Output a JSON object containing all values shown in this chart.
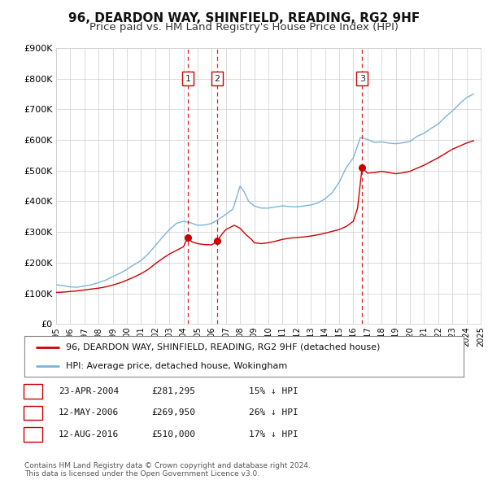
{
  "title": "96, DEARDON WAY, SHINFIELD, READING, RG2 9HF",
  "subtitle": "Price paid vs. HM Land Registry's House Price Index (HPI)",
  "title_fontsize": 11,
  "subtitle_fontsize": 9.5,
  "background_color": "#ffffff",
  "plot_bg_color": "#ffffff",
  "grid_color": "#cccccc",
  "ylim": [
    0,
    900000
  ],
  "yticks": [
    0,
    100000,
    200000,
    300000,
    400000,
    500000,
    600000,
    700000,
    800000,
    900000
  ],
  "ytick_labels": [
    "£0",
    "£100K",
    "£200K",
    "£300K",
    "£400K",
    "£500K",
    "£600K",
    "£700K",
    "£800K",
    "£900K"
  ],
  "hpi_color": "#7cb4d8",
  "price_color": "#cc0000",
  "sale_marker_color": "#cc0000",
  "dashed_line_color": "#cc0000",
  "sales": [
    {
      "label": "1",
      "date_x": 2004.31,
      "price": 281295
    },
    {
      "label": "2",
      "date_x": 2006.37,
      "price": 269950
    },
    {
      "label": "3",
      "date_x": 2016.62,
      "price": 510000
    }
  ],
  "legend_label_price": "96, DEARDON WAY, SHINFIELD, READING, RG2 9HF (detached house)",
  "legend_label_hpi": "HPI: Average price, detached house, Wokingham",
  "table_rows": [
    {
      "num": "1",
      "date": "23-APR-2004",
      "price": "£281,295",
      "pct": "15% ↓ HPI"
    },
    {
      "num": "2",
      "date": "12-MAY-2006",
      "price": "£269,950",
      "pct": "26% ↓ HPI"
    },
    {
      "num": "3",
      "date": "12-AUG-2016",
      "price": "£510,000",
      "pct": "17% ↓ HPI"
    }
  ],
  "footer_text": "Contains HM Land Registry data © Crown copyright and database right 2024.\nThis data is licensed under the Open Government Licence v3.0.",
  "xmin": 1995,
  "xmax": 2025,
  "hpi_points": [
    [
      1995.0,
      128000
    ],
    [
      1995.5,
      125000
    ],
    [
      1996.0,
      121000
    ],
    [
      1996.5,
      120000
    ],
    [
      1997.0,
      124000
    ],
    [
      1997.5,
      128000
    ],
    [
      1998.0,
      135000
    ],
    [
      1998.5,
      143000
    ],
    [
      1999.0,
      155000
    ],
    [
      1999.5,
      165000
    ],
    [
      2000.0,
      178000
    ],
    [
      2000.5,
      193000
    ],
    [
      2001.0,
      207000
    ],
    [
      2001.5,
      228000
    ],
    [
      2002.0,
      255000
    ],
    [
      2002.5,
      282000
    ],
    [
      2003.0,
      308000
    ],
    [
      2003.5,
      328000
    ],
    [
      2004.0,
      335000
    ],
    [
      2004.5,
      330000
    ],
    [
      2005.0,
      322000
    ],
    [
      2005.5,
      323000
    ],
    [
      2006.0,
      328000
    ],
    [
      2006.5,
      342000
    ],
    [
      2007.0,
      358000
    ],
    [
      2007.5,
      375000
    ],
    [
      2008.0,
      450000
    ],
    [
      2008.3,
      430000
    ],
    [
      2008.6,
      400000
    ],
    [
      2009.0,
      385000
    ],
    [
      2009.5,
      378000
    ],
    [
      2010.0,
      378000
    ],
    [
      2010.5,
      382000
    ],
    [
      2011.0,
      385000
    ],
    [
      2011.5,
      383000
    ],
    [
      2012.0,
      382000
    ],
    [
      2012.5,
      385000
    ],
    [
      2013.0,
      388000
    ],
    [
      2013.5,
      395000
    ],
    [
      2014.0,
      408000
    ],
    [
      2014.5,
      428000
    ],
    [
      2015.0,
      462000
    ],
    [
      2015.5,
      510000
    ],
    [
      2016.0,
      542000
    ],
    [
      2016.5,
      608000
    ],
    [
      2017.0,
      602000
    ],
    [
      2017.5,
      592000
    ],
    [
      2018.0,
      594000
    ],
    [
      2018.5,
      590000
    ],
    [
      2019.0,
      588000
    ],
    [
      2019.5,
      591000
    ],
    [
      2020.0,
      595000
    ],
    [
      2020.5,
      612000
    ],
    [
      2021.0,
      622000
    ],
    [
      2021.5,
      638000
    ],
    [
      2022.0,
      652000
    ],
    [
      2022.5,
      675000
    ],
    [
      2023.0,
      695000
    ],
    [
      2023.5,
      718000
    ],
    [
      2024.0,
      738000
    ],
    [
      2024.5,
      750000
    ]
  ],
  "price_points": [
    [
      1995.0,
      103000
    ],
    [
      1995.5,
      104000
    ],
    [
      1996.0,
      106000
    ],
    [
      1996.5,
      108000
    ],
    [
      1997.0,
      111000
    ],
    [
      1997.5,
      114000
    ],
    [
      1998.0,
      117000
    ],
    [
      1998.5,
      121000
    ],
    [
      1999.0,
      127000
    ],
    [
      1999.5,
      134000
    ],
    [
      2000.0,
      143000
    ],
    [
      2000.5,
      153000
    ],
    [
      2001.0,
      164000
    ],
    [
      2001.5,
      178000
    ],
    [
      2002.0,
      196000
    ],
    [
      2002.5,
      213000
    ],
    [
      2003.0,
      228000
    ],
    [
      2003.5,
      240000
    ],
    [
      2004.0,
      252000
    ],
    [
      2004.31,
      281295
    ],
    [
      2004.6,
      268000
    ],
    [
      2005.0,
      262000
    ],
    [
      2005.5,
      259000
    ],
    [
      2006.0,
      258000
    ],
    [
      2006.37,
      269950
    ],
    [
      2006.8,
      298000
    ],
    [
      2007.0,
      308000
    ],
    [
      2007.3,
      315000
    ],
    [
      2007.6,
      322000
    ],
    [
      2008.0,
      312000
    ],
    [
      2008.4,
      292000
    ],
    [
      2008.8,
      276000
    ],
    [
      2009.0,
      265000
    ],
    [
      2009.5,
      262000
    ],
    [
      2010.0,
      265000
    ],
    [
      2010.5,
      270000
    ],
    [
      2011.0,
      276000
    ],
    [
      2011.5,
      280000
    ],
    [
      2012.0,
      282000
    ],
    [
      2012.5,
      284000
    ],
    [
      2013.0,
      287000
    ],
    [
      2013.5,
      291000
    ],
    [
      2014.0,
      296000
    ],
    [
      2014.5,
      302000
    ],
    [
      2015.0,
      308000
    ],
    [
      2015.5,
      318000
    ],
    [
      2016.0,
      335000
    ],
    [
      2016.3,
      378000
    ],
    [
      2016.62,
      510000
    ],
    [
      2017.0,
      492000
    ],
    [
      2017.5,
      494000
    ],
    [
      2018.0,
      498000
    ],
    [
      2018.5,
      494000
    ],
    [
      2019.0,
      490000
    ],
    [
      2019.5,
      493000
    ],
    [
      2020.0,
      498000
    ],
    [
      2020.5,
      508000
    ],
    [
      2021.0,
      518000
    ],
    [
      2021.5,
      530000
    ],
    [
      2022.0,
      542000
    ],
    [
      2022.5,
      556000
    ],
    [
      2023.0,
      570000
    ],
    [
      2023.5,
      580000
    ],
    [
      2024.0,
      590000
    ],
    [
      2024.5,
      598000
    ]
  ]
}
